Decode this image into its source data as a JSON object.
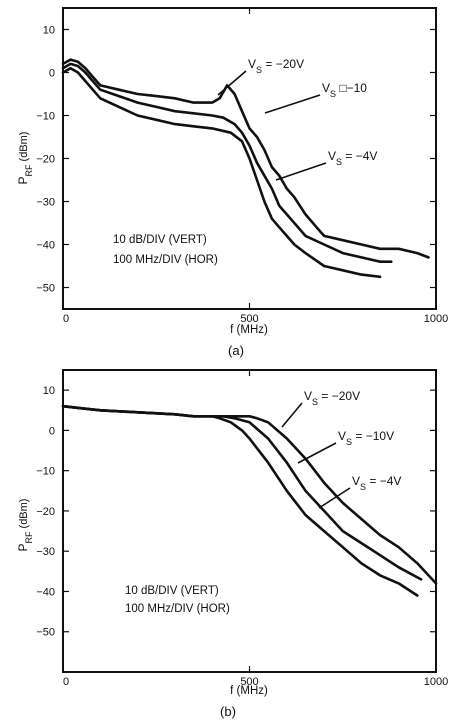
{
  "chart_data": [
    {
      "type": "line",
      "panel_label": "(a)",
      "xlabel": "f (MHz)",
      "ylabel_main": "P",
      "ylabel_sub": "RF",
      "ylabel_unit": "(dBm)",
      "xlim": [
        0,
        1000
      ],
      "ylim": [
        -55,
        15
      ],
      "xticks": [
        0,
        500,
        1000
      ],
      "yticks": [
        10,
        0,
        -10,
        -20,
        -30,
        -40,
        -50
      ],
      "annotation_lines": [
        "10 dB/DIV (VERT)",
        "100 MHz/DIV (HOR)"
      ],
      "series": [
        {
          "name": "V_S = -20V",
          "label_main": "V",
          "label_sub": "S",
          "label_rest": " = -20V",
          "x": [
            0,
            20,
            40,
            60,
            80,
            100,
            150,
            200,
            250,
            300,
            350,
            400,
            420,
            440,
            460,
            480,
            500,
            520,
            540,
            560,
            580,
            600,
            620,
            650,
            680,
            700,
            750,
            800,
            850,
            900,
            950,
            980
          ],
          "y": [
            2,
            3,
            2.5,
            1,
            -1,
            -3,
            -4,
            -5,
            -5.5,
            -6,
            -7,
            -7,
            -6,
            -3,
            -5,
            -9,
            -13,
            -15,
            -18,
            -22,
            -24,
            -27,
            -29,
            -33,
            -36,
            -38,
            -39,
            -40,
            -41,
            -41,
            -42,
            -43
          ]
        },
        {
          "name": "V_S = -10",
          "label_main": "V",
          "label_sub": "S",
          "label_rest": " □-10",
          "x": [
            0,
            20,
            40,
            60,
            80,
            100,
            150,
            200,
            250,
            300,
            350,
            400,
            430,
            460,
            480,
            500,
            520,
            540,
            560,
            580,
            600,
            620,
            650,
            700,
            750,
            800,
            850,
            880
          ],
          "y": [
            1,
            2,
            1.5,
            0,
            -2,
            -4,
            -5.5,
            -7,
            -8,
            -9,
            -9.5,
            -10,
            -10.5,
            -12,
            -14,
            -17,
            -21,
            -24,
            -27,
            -31,
            -33,
            -35,
            -38,
            -40,
            -42,
            -43,
            -44,
            -44
          ]
        },
        {
          "name": "V_S = -4V",
          "label_main": "V",
          "label_sub": "S",
          "label_rest": " = -4V",
          "x": [
            0,
            20,
            40,
            60,
            80,
            100,
            150,
            200,
            250,
            300,
            350,
            400,
            450,
            480,
            500,
            520,
            540,
            560,
            580,
            600,
            620,
            650,
            700,
            750,
            800,
            850
          ],
          "y": [
            0,
            1,
            0,
            -2,
            -4,
            -6,
            -8,
            -10,
            -11,
            -12,
            -12.5,
            -13,
            -14,
            -16,
            -20,
            -25,
            -30,
            -34,
            -36,
            -38,
            -40,
            -42,
            -45,
            -46,
            -47,
            -47.5
          ]
        }
      ]
    },
    {
      "type": "line",
      "panel_label": "(b)",
      "xlabel": "f (MHz)",
      "ylabel_main": "P",
      "ylabel_sub": "RF",
      "ylabel_unit": "(dBm)",
      "xlim": [
        0,
        1000
      ],
      "ylim": [
        -60,
        15
      ],
      "xticks": [
        0,
        500,
        1000
      ],
      "yticks": [
        10,
        0,
        -10,
        -20,
        -30,
        -40,
        -50
      ],
      "annotation_lines": [
        "10 dB/DIV (VERT)",
        "100 MHz/DIV (HOR)"
      ],
      "series": [
        {
          "name": "V_S = -20V",
          "label_main": "V",
          "label_sub": "S",
          "label_rest": " = -20V",
          "x": [
            0,
            50,
            100,
            200,
            300,
            350,
            400,
            450,
            480,
            500,
            520,
            550,
            600,
            650,
            700,
            750,
            800,
            850,
            900,
            950,
            1000
          ],
          "y": [
            6,
            5.5,
            5,
            4.5,
            4,
            3.5,
            3.5,
            3.5,
            3.5,
            3.5,
            3,
            2,
            -2,
            -7,
            -13,
            -18,
            -22,
            -26,
            -29,
            -33,
            -38
          ]
        },
        {
          "name": "V_S = -10V",
          "label_main": "V",
          "label_sub": "S",
          "label_rest": " = -10V",
          "x": [
            0,
            50,
            100,
            200,
            300,
            350,
            400,
            430,
            460,
            480,
            500,
            550,
            600,
            650,
            700,
            750,
            800,
            850,
            900,
            960
          ],
          "y": [
            6,
            5.5,
            5,
            4.5,
            4,
            3.5,
            3.5,
            3.5,
            3,
            2.5,
            2,
            -2,
            -8,
            -15,
            -20,
            -25,
            -28,
            -31,
            -34,
            -37
          ]
        },
        {
          "name": "V_S = -4V",
          "label_main": "V",
          "label_sub": "S",
          "label_rest": " = -4V",
          "x": [
            0,
            50,
            100,
            200,
            300,
            350,
            400,
            420,
            450,
            480,
            500,
            550,
            600,
            650,
            700,
            750,
            800,
            850,
            900,
            950
          ],
          "y": [
            6,
            5.5,
            5,
            4.5,
            4,
            3.5,
            3.5,
            3,
            2,
            0,
            -2,
            -8,
            -15,
            -21,
            -25,
            -29,
            -33,
            -36,
            -38,
            -41
          ]
        }
      ]
    }
  ]
}
